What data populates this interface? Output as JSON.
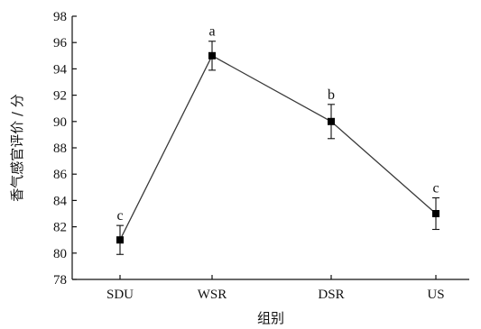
{
  "chart_data": {
    "type": "line",
    "categories": [
      "SDU",
      "WSR",
      "DSR",
      "US"
    ],
    "series": [
      {
        "values": [
          81.0,
          95.0,
          90.0,
          83.0
        ],
        "error": [
          1.1,
          1.1,
          1.3,
          1.2
        ],
        "significance": [
          "c",
          "a",
          "b",
          "c"
        ]
      }
    ],
    "xlabel": "组别",
    "ylabel": "香气感官评价 / 分",
    "ylim": [
      78,
      98
    ],
    "yticks": [
      78,
      80,
      82,
      84,
      86,
      88,
      90,
      92,
      94,
      96,
      98
    ],
    "grid": false,
    "legend": "none",
    "colors": {
      "line": "#3a3a3a",
      "marker": "#000000",
      "axis": "#111111"
    }
  }
}
